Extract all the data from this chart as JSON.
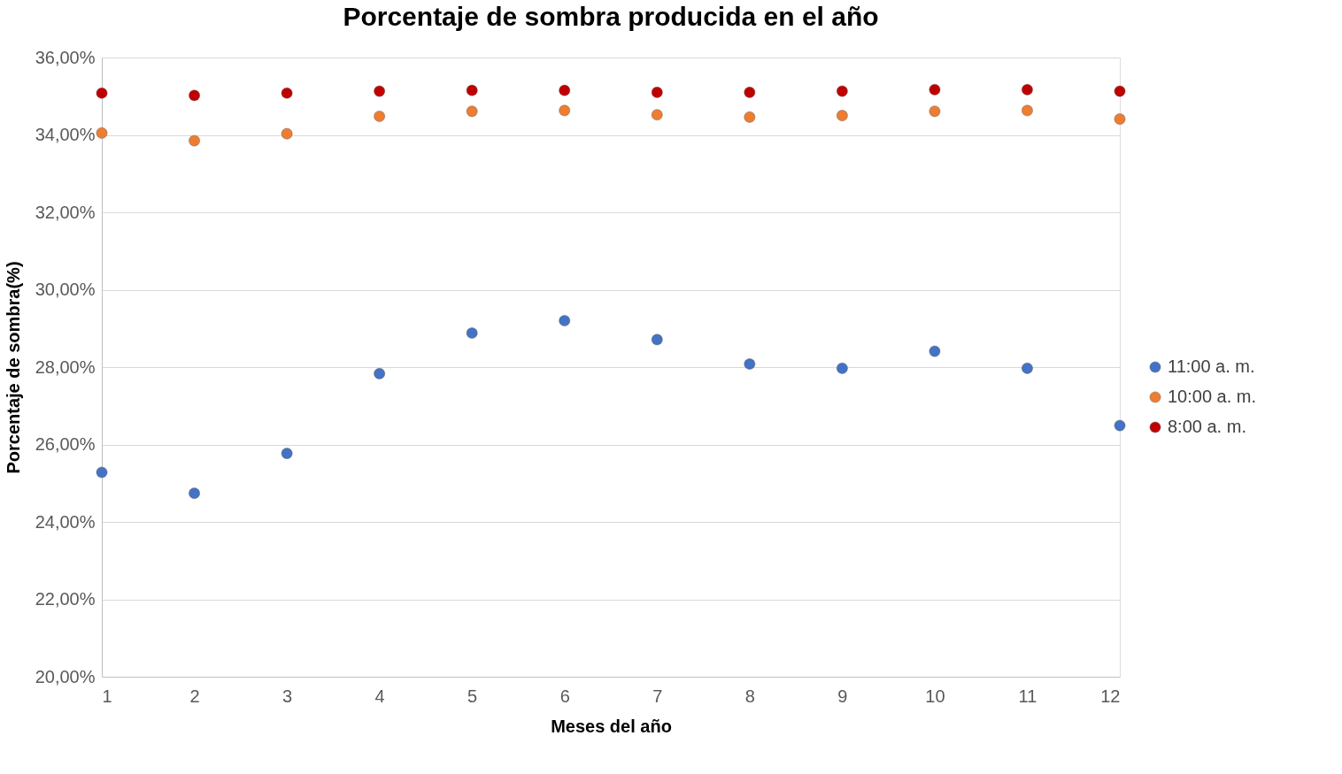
{
  "chart_data": {
    "type": "scatter",
    "title": "Porcentaje de sombra producida  en el año",
    "xlabel": "Meses del año",
    "ylabel": "Porcentaje de sombra(%)",
    "x": [
      1,
      2,
      3,
      4,
      5,
      6,
      7,
      8,
      9,
      10,
      11,
      12
    ],
    "series": [
      {
        "name": "11:00 a. m.",
        "color": "#4472c4",
        "values": [
          25.28,
          24.74,
          25.77,
          27.83,
          28.88,
          29.2,
          28.71,
          28.08,
          27.97,
          28.41,
          27.97,
          26.49
        ]
      },
      {
        "name": "10:00 a. m.",
        "color": "#ed7d31",
        "values": [
          34.05,
          33.85,
          34.03,
          34.48,
          34.61,
          34.63,
          34.52,
          34.46,
          34.5,
          34.61,
          34.63,
          34.41
        ]
      },
      {
        "name": "8:00 a. m.",
        "color": "#c00000",
        "values": [
          35.08,
          35.02,
          35.08,
          35.13,
          35.15,
          35.15,
          35.1,
          35.1,
          35.13,
          35.17,
          35.17,
          35.13
        ]
      }
    ],
    "xlim": [
      1,
      12
    ],
    "xticks": [
      1,
      2,
      3,
      4,
      5,
      6,
      7,
      8,
      9,
      10,
      11,
      12
    ],
    "ylim": [
      20,
      36
    ],
    "yticks": [
      {
        "value": 20,
        "label": "20,00%"
      },
      {
        "value": 22,
        "label": "22,00%"
      },
      {
        "value": 24,
        "label": "24,00%"
      },
      {
        "value": 26,
        "label": "26,00%"
      },
      {
        "value": 28,
        "label": "28,00%"
      },
      {
        "value": 30,
        "label": "30,00%"
      },
      {
        "value": 32,
        "label": "32,00%"
      },
      {
        "value": 34,
        "label": "34,00%"
      },
      {
        "value": 36,
        "label": "36,00%"
      }
    ],
    "grid": "y",
    "legend": "right",
    "marker": "circle"
  }
}
